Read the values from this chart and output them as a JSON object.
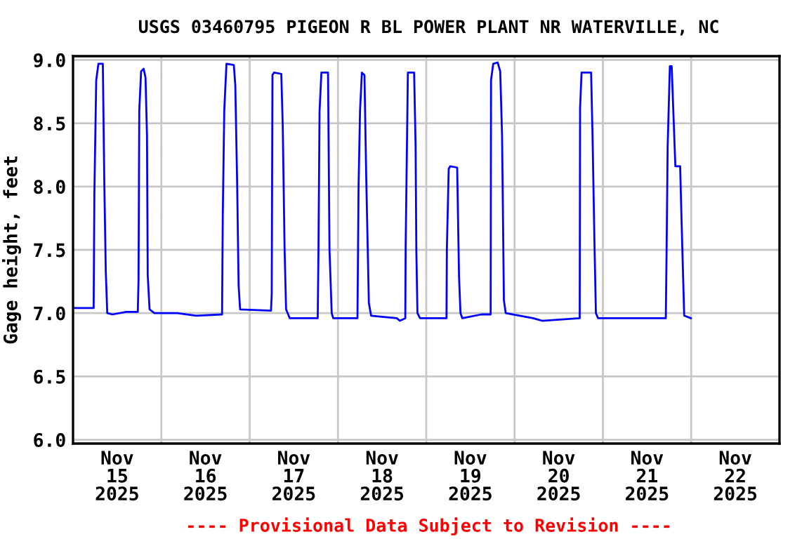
{
  "chart_data": {
    "type": "line",
    "title": "USGS 03460795 PIGEON R BL POWER PLANT NR WATERVILLE, NC",
    "ylabel": "Gage height, feet",
    "annotations": [
      "---- Provisional Data Subject to Revision ----"
    ],
    "xlim": [
      "2025-11-15T00:00",
      "2025-11-23T00:00"
    ],
    "xticks": [
      {
        "value": "2025-11-15T12:00",
        "label": "Nov\n15\n2025"
      },
      {
        "value": "2025-11-16T12:00",
        "label": "Nov\n16\n2025"
      },
      {
        "value": "2025-11-17T12:00",
        "label": "Nov\n17\n2025"
      },
      {
        "value": "2025-11-18T12:00",
        "label": "Nov\n18\n2025"
      },
      {
        "value": "2025-11-19T12:00",
        "label": "Nov\n19\n2025"
      },
      {
        "value": "2025-11-20T12:00",
        "label": "Nov\n20\n2025"
      },
      {
        "value": "2025-11-21T12:00",
        "label": "Nov\n21\n2025"
      },
      {
        "value": "2025-11-22T12:00",
        "label": "Nov\n22\n2025"
      },
      {
        "value": "2025-11-16T00:00",
        "label": null
      },
      {
        "value": "2025-11-17T00:00",
        "label": null
      },
      {
        "value": "2025-11-18T00:00",
        "label": null
      },
      {
        "value": "2025-11-19T00:00",
        "label": null
      },
      {
        "value": "2025-11-20T00:00",
        "label": null
      },
      {
        "value": "2025-11-21T00:00",
        "label": null
      },
      {
        "value": "2025-11-22T00:00",
        "label": null
      }
    ],
    "ylim": [
      5.97,
      9.03
    ],
    "yticks": [
      {
        "value": 6,
        "label": "6.0"
      },
      {
        "value": 6.5,
        "label": "6.5"
      },
      {
        "value": 7,
        "label": "7.0"
      },
      {
        "value": 7.5,
        "label": "7.5"
      },
      {
        "value": 8,
        "label": "8.0"
      },
      {
        "value": 8.5,
        "label": "8.5"
      },
      {
        "value": 9,
        "label": "9.0"
      }
    ],
    "grid": true,
    "marker": "none",
    "line_style": "solid",
    "series": [
      {
        "color": "#0000ff",
        "x": [
          "2025-11-15T00:00",
          "2025-11-15T05:36",
          "2025-11-15T05:48",
          "2025-11-15T06:18",
          "2025-11-15T06:54",
          "2025-11-15T08:06",
          "2025-11-15T08:30",
          "2025-11-15T08:54",
          "2025-11-15T09:18",
          "2025-11-15T10:42",
          "2025-11-15T14:30",
          "2025-11-15T17:36",
          "2025-11-15T17:48",
          "2025-11-15T18:00",
          "2025-11-15T18:30",
          "2025-11-15T19:12",
          "2025-11-15T19:42",
          "2025-11-15T20:06",
          "2025-11-15T20:18",
          "2025-11-15T20:48",
          "2025-11-15T22:06",
          "2025-11-16T04:24",
          "2025-11-16T09:30",
          "2025-11-16T16:30",
          "2025-11-16T16:42",
          "2025-11-16T17:06",
          "2025-11-16T17:42",
          "2025-11-16T19:42",
          "2025-11-16T20:06",
          "2025-11-16T20:36",
          "2025-11-16T21:00",
          "2025-11-16T21:24",
          "2025-11-17T05:48",
          "2025-11-17T06:00",
          "2025-11-17T06:12",
          "2025-11-17T06:36",
          "2025-11-17T08:36",
          "2025-11-17T09:00",
          "2025-11-17T09:30",
          "2025-11-17T09:54",
          "2025-11-17T10:54",
          "2025-11-17T18:30",
          "2025-11-17T18:42",
          "2025-11-17T19:00",
          "2025-11-17T19:30",
          "2025-11-17T21:18",
          "2025-11-17T21:42",
          "2025-11-17T22:18",
          "2025-11-17T22:42",
          "2025-11-18T05:18",
          "2025-11-18T05:36",
          "2025-11-18T06:00",
          "2025-11-18T06:30",
          "2025-11-18T07:12",
          "2025-11-18T07:42",
          "2025-11-18T08:24",
          "2025-11-18T09:00",
          "2025-11-18T16:00",
          "2025-11-18T16:48",
          "2025-11-18T18:18",
          "2025-11-18T18:24",
          "2025-11-18T19:00",
          "2025-11-18T20:42",
          "2025-11-18T21:06",
          "2025-11-18T21:18",
          "2025-11-18T21:36",
          "2025-11-18T22:18",
          "2025-11-19T05:30",
          "2025-11-19T05:36",
          "2025-11-19T06:06",
          "2025-11-19T06:30",
          "2025-11-19T08:24",
          "2025-11-19T08:54",
          "2025-11-19T09:18",
          "2025-11-19T09:48",
          "2025-11-19T15:00",
          "2025-11-19T17:30",
          "2025-11-19T17:36",
          "2025-11-19T18:12",
          "2025-11-19T19:24",
          "2025-11-19T20:06",
          "2025-11-19T20:36",
          "2025-11-19T21:06",
          "2025-11-19T21:36",
          "2025-11-20T05:00",
          "2025-11-20T07:30",
          "2025-11-20T17:42",
          "2025-11-20T17:48",
          "2025-11-20T18:12",
          "2025-11-20T20:48",
          "2025-11-20T21:12",
          "2025-11-20T21:42",
          "2025-11-20T22:06",
          "2025-11-20T22:42",
          "2025-11-21T17:06",
          "2025-11-21T17:18",
          "2025-11-21T17:36",
          "2025-11-21T18:12",
          "2025-11-21T18:42",
          "2025-11-21T19:12",
          "2025-11-21T19:42",
          "2025-11-21T21:00",
          "2025-11-21T21:18",
          "2025-11-21T21:48",
          "2025-11-21T22:06",
          "2025-11-21T23:54"
        ],
        "values": [
          7.04,
          7.04,
          7.94,
          8.84,
          8.97,
          8.97,
          8.03,
          7.33,
          7.0,
          6.99,
          7.01,
          7.01,
          7.26,
          8.6,
          8.91,
          8.93,
          8.86,
          8.4,
          7.3,
          7.03,
          7.0,
          7.0,
          6.98,
          6.99,
          7.78,
          8.6,
          8.97,
          8.96,
          8.8,
          8.03,
          7.22,
          7.03,
          7.02,
          7.15,
          8.88,
          8.9,
          8.89,
          8.47,
          7.5,
          7.03,
          6.96,
          6.96,
          7.5,
          8.6,
          8.9,
          8.9,
          7.5,
          7.0,
          6.96,
          6.96,
          8.0,
          8.6,
          8.9,
          8.88,
          8.05,
          7.08,
          6.98,
          6.96,
          6.94,
          6.96,
          7.53,
          8.9,
          8.9,
          8.32,
          7.5,
          7.0,
          6.96,
          6.96,
          7.51,
          8.14,
          8.16,
          8.15,
          7.29,
          7.0,
          6.96,
          6.99,
          6.99,
          8.84,
          8.97,
          8.98,
          8.91,
          8.4,
          7.1,
          7.0,
          6.96,
          6.94,
          6.96,
          8.62,
          8.9,
          8.9,
          8.38,
          7.57,
          7.0,
          6.96,
          6.96,
          7.46,
          8.31,
          8.95,
          8.95,
          8.55,
          8.16,
          8.16,
          7.82,
          7.29,
          6.98,
          6.96
        ]
      }
    ]
  }
}
